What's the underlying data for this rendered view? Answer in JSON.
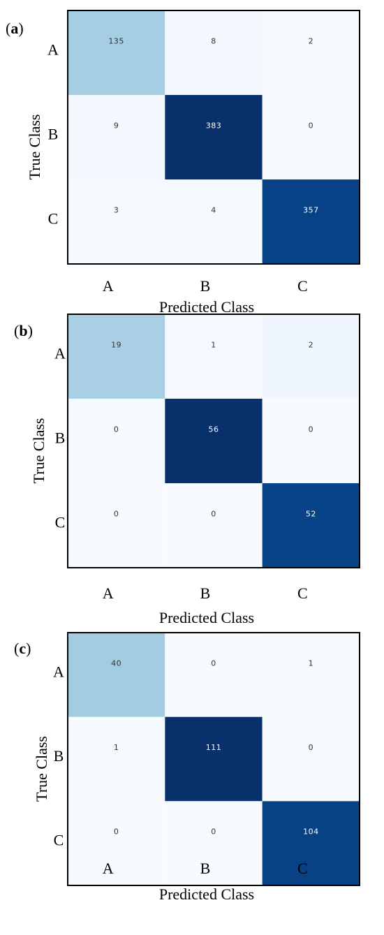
{
  "chart_data": [
    {
      "type": "heatmap",
      "panel_label": "(a)",
      "xlabel": "Predicted Class",
      "ylabel": "True Class",
      "x_categories": [
        "A",
        "B",
        "C"
      ],
      "y_categories": [
        "A",
        "B",
        "C"
      ],
      "values": [
        [
          135,
          8,
          2
        ],
        [
          9,
          383,
          0
        ],
        [
          3,
          4,
          357
        ]
      ],
      "colormap": "Blues"
    },
    {
      "type": "heatmap",
      "panel_label": "(b)",
      "xlabel": "Predicted Class",
      "ylabel": "True Class",
      "x_categories": [
        "A",
        "B",
        "C"
      ],
      "y_categories": [
        "A",
        "B",
        "C"
      ],
      "values": [
        [
          19,
          1,
          2
        ],
        [
          0,
          56,
          0
        ],
        [
          0,
          0,
          52
        ]
      ],
      "colormap": "Blues"
    },
    {
      "type": "heatmap",
      "panel_label": "(c)",
      "xlabel": "Predicted Class",
      "ylabel": "True Class",
      "x_categories": [
        "A",
        "B",
        "C"
      ],
      "y_categories": [
        "A",
        "B",
        "C"
      ],
      "values": [
        [
          40,
          0,
          1
        ],
        [
          1,
          111,
          0
        ],
        [
          0,
          0,
          104
        ]
      ],
      "colormap": "Blues"
    }
  ]
}
